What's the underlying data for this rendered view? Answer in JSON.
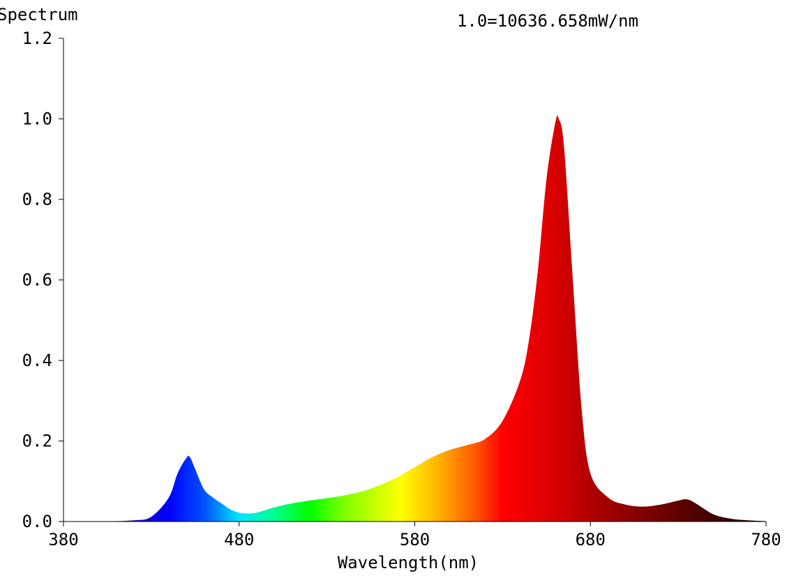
{
  "chart_data": {
    "type": "area",
    "title": "1.0=10636.658mW/nm",
    "ylabel": "Spectrum",
    "xlabel": "Wavelength(nm)",
    "xlim": [
      380,
      780
    ],
    "ylim": [
      0,
      1.2
    ],
    "xticks": [
      380,
      480,
      580,
      680,
      780
    ],
    "xtick_labels": [
      "380",
      "480",
      "580",
      "680",
      "780"
    ],
    "yticks": [
      0,
      0.2,
      0.4,
      0.6,
      0.8,
      1.0,
      1.2
    ],
    "ytick_labels": [
      "0.0",
      "0.2",
      "0.4",
      "0.6",
      "0.8",
      "1.0",
      "1.2"
    ],
    "grid": false,
    "fill": "wavelength-colored spectrum",
    "series": [
      {
        "x": [
          380,
          400,
          420,
          430,
          440,
          445,
          450,
          452,
          455,
          460,
          465,
          470,
          475,
          480,
          485,
          490,
          500,
          510,
          520,
          530,
          540,
          550,
          560,
          570,
          580,
          590,
          600,
          610,
          620,
          630,
          640,
          645,
          650,
          655,
          660,
          662,
          665,
          670,
          675,
          680,
          690,
          700,
          710,
          720,
          730,
          735,
          740,
          750,
          760,
          770,
          780
        ],
        "y": [
          0.0,
          0.0,
          0.003,
          0.012,
          0.06,
          0.12,
          0.158,
          0.16,
          0.13,
          0.08,
          0.06,
          0.045,
          0.03,
          0.022,
          0.02,
          0.022,
          0.035,
          0.045,
          0.052,
          0.058,
          0.065,
          0.075,
          0.09,
          0.11,
          0.135,
          0.16,
          0.178,
          0.19,
          0.205,
          0.25,
          0.35,
          0.45,
          0.62,
          0.85,
          0.99,
          1.0,
          0.93,
          0.6,
          0.28,
          0.12,
          0.06,
          0.042,
          0.037,
          0.042,
          0.052,
          0.055,
          0.045,
          0.018,
          0.007,
          0.003,
          0.001
        ]
      }
    ]
  }
}
